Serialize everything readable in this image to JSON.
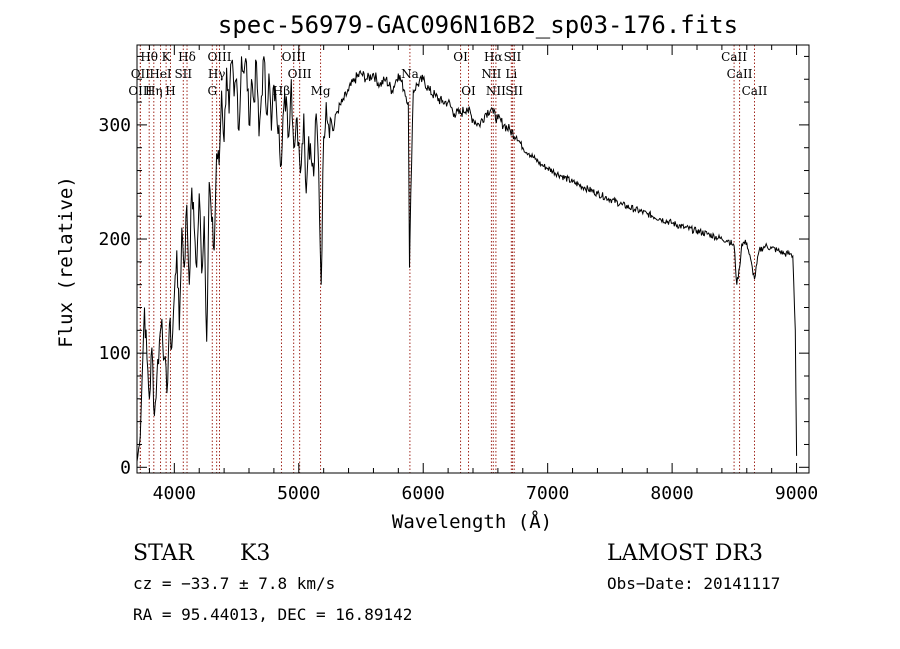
{
  "chart_data": {
    "type": "line",
    "title": "spec-56979-GAC096N16B2_sp03-176.fits",
    "xlabel": "Wavelength (Å)",
    "ylabel": "Flux (relative)",
    "xlim": [
      3700,
      9100
    ],
    "ylim": [
      -5,
      370
    ],
    "xticks": [
      4000,
      5000,
      6000,
      7000,
      8000,
      9000
    ],
    "yticks": [
      0,
      100,
      200,
      300
    ],
    "series": [
      {
        "name": "flux",
        "x": [
          3700,
          3720,
          3740,
          3760,
          3780,
          3800,
          3820,
          3840,
          3860,
          3880,
          3900,
          3920,
          3940,
          3960,
          3980,
          4000,
          4020,
          4040,
          4060,
          4080,
          4100,
          4120,
          4140,
          4160,
          4180,
          4200,
          4220,
          4240,
          4260,
          4280,
          4300,
          4320,
          4340,
          4360,
          4380,
          4400,
          4420,
          4440,
          4460,
          4480,
          4500,
          4520,
          4540,
          4560,
          4580,
          4600,
          4620,
          4640,
          4660,
          4680,
          4700,
          4720,
          4740,
          4760,
          4780,
          4800,
          4820,
          4840,
          4860,
          4880,
          4900,
          4920,
          4940,
          4960,
          4980,
          5000,
          5020,
          5040,
          5060,
          5080,
          5100,
          5120,
          5140,
          5160,
          5180,
          5200,
          5220,
          5240,
          5260,
          5280,
          5300,
          5350,
          5400,
          5450,
          5500,
          5550,
          5600,
          5650,
          5700,
          5750,
          5800,
          5850,
          5880,
          5890,
          5900,
          5920,
          5950,
          6000,
          6050,
          6100,
          6150,
          6200,
          6250,
          6300,
          6350,
          6400,
          6450,
          6500,
          6550,
          6563,
          6600,
          6650,
          6700,
          6750,
          6800,
          6850,
          6900,
          6950,
          7000,
          7100,
          7200,
          7300,
          7400,
          7500,
          7600,
          7700,
          7800,
          7900,
          8000,
          8100,
          8200,
          8300,
          8400,
          8450,
          8498,
          8520,
          8542,
          8560,
          8600,
          8662,
          8700,
          8750,
          8800,
          8850,
          8900,
          8950,
          8970,
          8990,
          9000
        ],
        "values": [
          5,
          20,
          75,
          140,
          95,
          60,
          105,
          45,
          80,
          110,
          130,
          95,
          65,
          125,
          105,
          150,
          190,
          120,
          210,
          175,
          230,
          160,
          245,
          210,
          175,
          240,
          170,
          220,
          110,
          250,
          215,
          190,
          275,
          265,
          330,
          285,
          350,
          310,
          355,
          325,
          340,
          295,
          360,
          345,
          355,
          300,
          340,
          320,
          355,
          290,
          325,
          360,
          310,
          345,
          295,
          335,
          315,
          300,
          265,
          315,
          325,
          290,
          340,
          280,
          305,
          285,
          265,
          310,
          240,
          290,
          270,
          255,
          310,
          260,
          160,
          290,
          320,
          300,
          305,
          295,
          310,
          320,
          330,
          340,
          345,
          340,
          345,
          335,
          340,
          330,
          345,
          330,
          320,
          175,
          240,
          330,
          335,
          340,
          330,
          325,
          320,
          320,
          310,
          310,
          315,
          305,
          300,
          310,
          315,
          310,
          305,
          300,
          295,
          290,
          280,
          275,
          270,
          265,
          262,
          256,
          250,
          245,
          240,
          235,
          230,
          226,
          222,
          218,
          214,
          210,
          207,
          204,
          200,
          199,
          194,
          160,
          175,
          196,
          197,
          165,
          190,
          194,
          192,
          190,
          187,
          187,
          185,
          120,
          10
        ]
      }
    ],
    "lines": [
      {
        "label": "Hθ",
        "x": 3798,
        "row": 1
      },
      {
        "label": "OII",
        "x": 3727,
        "row": 2
      },
      {
        "label": "OIII",
        "x": 3727,
        "row": 3
      },
      {
        "label": "Hη",
        "x": 3835,
        "row": 3
      },
      {
        "label": "HeI",
        "x": 3889,
        "row": 2
      },
      {
        "label": "K",
        "x": 3934,
        "row": 1
      },
      {
        "label": "SII",
        "x": 4072,
        "row": 2
      },
      {
        "label": "H",
        "x": 3969,
        "row": 3
      },
      {
        "label": "Hδ",
        "x": 4102,
        "row": 1
      },
      {
        "label": "OIII",
        "x": 4363,
        "row": 1
      },
      {
        "label": "Hγ",
        "x": 4340,
        "row": 2
      },
      {
        "label": "G",
        "x": 4305,
        "row": 3
      },
      {
        "label": "OIII",
        "x": 4959,
        "row": 1
      },
      {
        "label": "OIII",
        "x": 5007,
        "row": 2
      },
      {
        "label": "Hβ",
        "x": 4861,
        "row": 3
      },
      {
        "label": "Mg",
        "x": 5175,
        "row": 3
      },
      {
        "label": "Na",
        "x": 5893,
        "row": 2
      },
      {
        "label": "OI",
        "x": 6300,
        "row": 1
      },
      {
        "label": "OI",
        "x": 6364,
        "row": 3
      },
      {
        "label": "Hα",
        "x": 6563,
        "row": 1
      },
      {
        "label": "SII",
        "x": 6717,
        "row": 1
      },
      {
        "label": "NII",
        "x": 6548,
        "row": 2
      },
      {
        "label": "Li",
        "x": 6708,
        "row": 2
      },
      {
        "label": "NII",
        "x": 6584,
        "row": 3
      },
      {
        "label": "SII",
        "x": 6731,
        "row": 3
      },
      {
        "label": "CaII",
        "x": 8498,
        "row": 1
      },
      {
        "label": "CaII",
        "x": 8542,
        "row": 2
      },
      {
        "label": "CaII",
        "x": 8662,
        "row": 3
      }
    ]
  },
  "info": {
    "class_label": "STAR",
    "subclass": "K3",
    "survey": "LAMOST DR3",
    "cz": "cz = −33.7 ± 7.8 km/s",
    "obs_date": "Obs−Date: 20141117",
    "coords": "RA =  95.44013, DEC =  16.89142"
  },
  "colors": {
    "spectrum": "#000000",
    "line_marker": "#a0281e"
  }
}
